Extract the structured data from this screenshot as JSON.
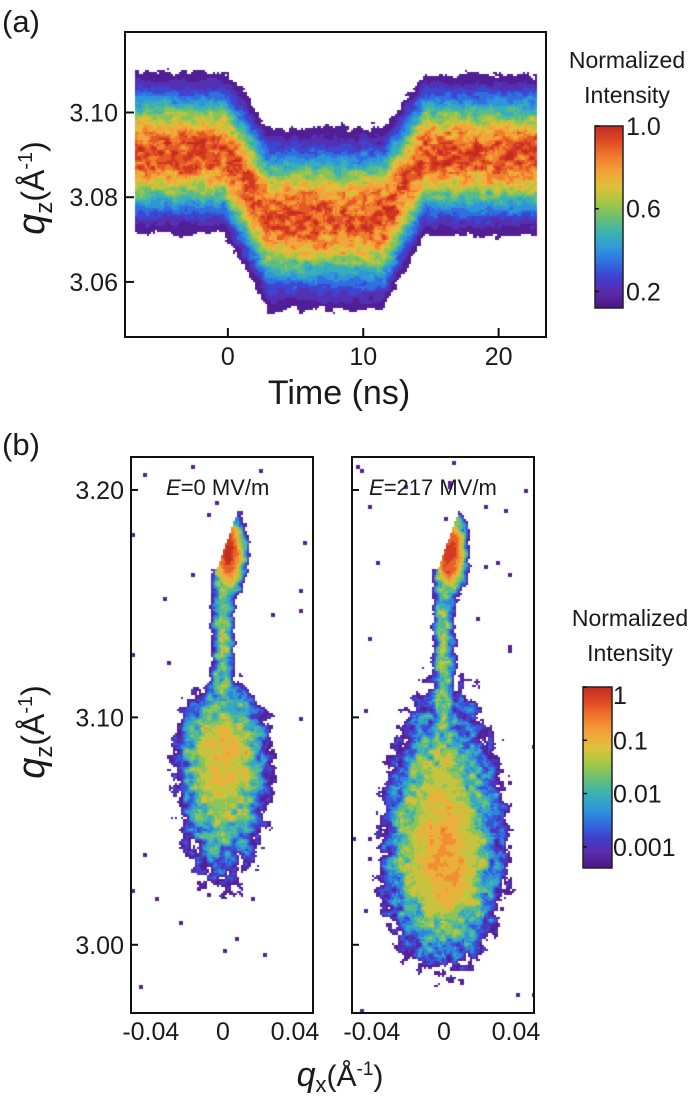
{
  "figure": {
    "panel_a_label": "(a)",
    "panel_b_label": "(b)"
  },
  "colormap": [
    "#4a1486",
    "#5b2ba8",
    "#3f3fcf",
    "#2f6fe0",
    "#2f9ad8",
    "#3cb4b0",
    "#6cc070",
    "#a9c743",
    "#e0c03a",
    "#f4a23a",
    "#f07a2c",
    "#e04a24",
    "#c42a1e"
  ],
  "chart_data": [
    {
      "type": "heatmap",
      "panel": "(a)",
      "xlabel": "Time (ns)",
      "ylabel": {
        "symbol": "q",
        "subscript": "z",
        "unit_open": "(Å",
        "exponent": "-1",
        "unit_close": ")"
      },
      "xlim": [
        -7.6,
        23.5
      ],
      "ylim": [
        3.047,
        3.119
      ],
      "xticks": [
        "0",
        "10",
        "20"
      ],
      "xtick_values": [
        0,
        10,
        20
      ],
      "yticks": [
        "3.10",
        "3.08",
        "3.06"
      ],
      "ytick_values": [
        3.1,
        3.08,
        3.06
      ],
      "data_time_range": [
        -6.9,
        22.9
      ],
      "peak_profile": {
        "time_ns": [
          -7.6,
          -0.3,
          1.0,
          3.0,
          11.5,
          12.5,
          14.5,
          23.5
        ],
        "peak_center_qz": [
          3.0905,
          3.0905,
          3.085,
          3.075,
          3.075,
          3.08,
          3.09,
          3.09
        ],
        "band_halfwidth_qz": [
          0.0195,
          0.0195,
          0.021,
          0.022,
          0.022,
          0.021,
          0.0195,
          0.0195
        ]
      },
      "colorbar": {
        "title_line1": "Normalized",
        "title_line2": "Intensity",
        "scale": "linear",
        "range": [
          0.12,
          1.0
        ],
        "ticks": [
          "1.0",
          "0.6",
          "0.2"
        ],
        "tick_values": [
          1.0,
          0.6,
          0.2
        ]
      }
    },
    {
      "type": "heatmap",
      "panel": "(b)",
      "xlabel": {
        "symbol": "q",
        "subscript": "x",
        "unit_open": "(Å",
        "exponent": "-1",
        "unit_close": ")"
      },
      "ylabel": {
        "symbol": "q",
        "subscript": "z",
        "unit_open": "(Å",
        "exponent": "-1",
        "unit_close": ")"
      },
      "xlim": [
        -0.051,
        0.05
      ],
      "ylim": [
        2.97,
        3.2145
      ],
      "xticks": [
        "-0.04",
        "0",
        "0.04"
      ],
      "xtick_values": [
        -0.04,
        0,
        0.04
      ],
      "yticks": [
        "3.20",
        "3.10",
        "3.00"
      ],
      "ytick_values": [
        3.2,
        3.1,
        3.0
      ],
      "subplots": [
        {
          "annotation": {
            "symbol": "E",
            "value": "=0 MV/m"
          },
          "main_peak": {
            "qx": 0,
            "qz": 3.085,
            "log10_intensity": -1.0,
            "qx_extent": 0.028,
            "qz_extent_up": 0.032,
            "qz_extent_down": 0.06
          },
          "substrate_peak": {
            "qx": 0.003,
            "qz": 3.172,
            "log10_intensity": 0
          }
        },
        {
          "annotation": {
            "symbol": "E",
            "value": "=217 MV/m"
          },
          "main_peak": {
            "qx": 0,
            "qz": 3.037,
            "log10_intensity": -0.8,
            "qx_extent": 0.036,
            "qz_extent_up": 0.08,
            "qz_extent_down": 0.05
          },
          "substrate_peak": {
            "qx": 0.003,
            "qz": 3.172,
            "log10_intensity": 0
          }
        }
      ],
      "colorbar": {
        "title_line1": "Normalized",
        "title_line2": "Intensity",
        "scale": "log",
        "range": [
          0.0004,
          1
        ],
        "ticks": [
          "1",
          "0.1",
          "0.01",
          "0.001"
        ],
        "tick_values": [
          1,
          0.1,
          0.01,
          0.001
        ]
      }
    }
  ]
}
